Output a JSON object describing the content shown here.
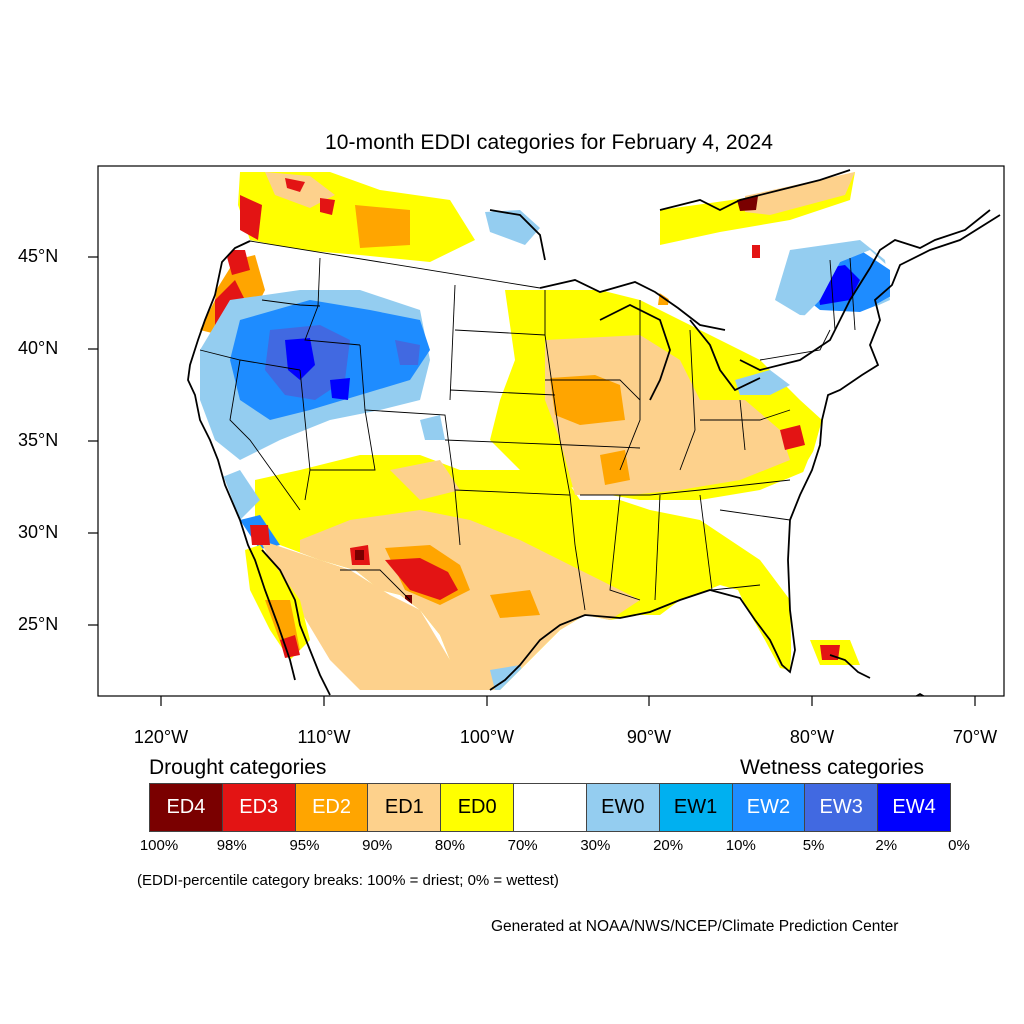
{
  "title": "10-month EDDI categories for February 4, 2024",
  "map": {
    "lat_labels": [
      "45°N",
      "40°N",
      "35°N",
      "30°N",
      "25°N"
    ],
    "lon_labels": [
      "120°W",
      "110°W",
      "100°W",
      "90°W",
      "80°W",
      "70°W"
    ],
    "colors": {
      "ED4": "#7a0000",
      "ED3": "#e31414",
      "ED2": "#ffa500",
      "ED1": "#fdd18c",
      "ED0": "#ffff00",
      "neutral": "#ffffff",
      "EW0": "#94cdf0",
      "EW1": "#00b0f0",
      "EW2": "#1e8cff",
      "EW3": "#4169e1",
      "EW4": "#0000ff"
    }
  },
  "legend": {
    "drought_heading": "Drought categories",
    "wetness_heading": "Wetness categories",
    "categories": [
      {
        "label": "ED4",
        "color": "#7a0000",
        "text_color": "#ffffff"
      },
      {
        "label": "ED3",
        "color": "#e31414",
        "text_color": "#ffffff"
      },
      {
        "label": "ED2",
        "color": "#ffa500",
        "text_color": "#ffffff"
      },
      {
        "label": "ED1",
        "color": "#fdd18c",
        "text_color": "#000000"
      },
      {
        "label": "ED0",
        "color": "#ffff00",
        "text_color": "#000000"
      },
      {
        "label": "",
        "color": "#ffffff",
        "text_color": "#000000"
      },
      {
        "label": "EW0",
        "color": "#94cdf0",
        "text_color": "#000000"
      },
      {
        "label": "EW1",
        "color": "#00b0f0",
        "text_color": "#000000"
      },
      {
        "label": "EW2",
        "color": "#1e8cff",
        "text_color": "#ffffff"
      },
      {
        "label": "EW3",
        "color": "#4169e1",
        "text_color": "#ffffff"
      },
      {
        "label": "EW4",
        "color": "#0000ff",
        "text_color": "#ffffff"
      }
    ],
    "percentiles": [
      "100%",
      "98%",
      "95%",
      "90%",
      "80%",
      "70%",
      "30%",
      "20%",
      "10%",
      "5%",
      "2%",
      "0%"
    ]
  },
  "note": "(EDDI-percentile category breaks: 100% = driest; 0% = wettest)",
  "credit": "Generated at NOAA/NWS/NCEP/Climate Prediction Center"
}
